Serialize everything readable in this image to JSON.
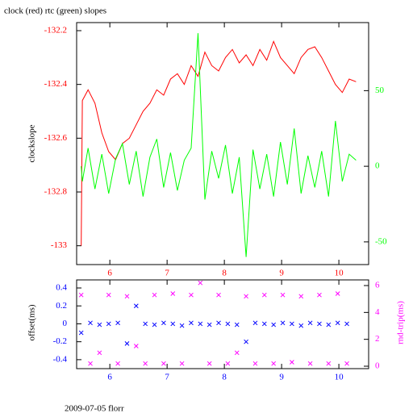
{
  "chart_data": [
    {
      "type": "line",
      "title": "clock (red) rtc (green) slopes",
      "y_label": "clockslope",
      "x": [
        5.5,
        5.52,
        5.62,
        5.74,
        5.86,
        5.98,
        6.1,
        6.22,
        6.34,
        6.46,
        6.58,
        6.7,
        6.82,
        6.94,
        7.06,
        7.18,
        7.3,
        7.42,
        7.54,
        7.66,
        7.78,
        7.9,
        8.02,
        8.14,
        8.26,
        8.38,
        8.5,
        8.62,
        8.74,
        8.86,
        8.98,
        9.1,
        9.22,
        9.34,
        9.46,
        9.58,
        9.7,
        9.82,
        9.94,
        10.06,
        10.18,
        10.3
      ],
      "series": [
        {
          "color": "#ff0000",
          "values": [
            -133.0,
            -132.46,
            -132.42,
            -132.47,
            -132.58,
            -132.65,
            -132.68,
            -132.62,
            -132.6,
            -132.55,
            -132.5,
            -132.47,
            -132.42,
            -132.44,
            -132.38,
            -132.36,
            -132.4,
            -132.33,
            -132.37,
            -132.28,
            -132.33,
            -132.35,
            -132.3,
            -132.27,
            -132.32,
            -132.29,
            -132.33,
            -132.27,
            -132.31,
            -132.24,
            -132.3,
            -132.33,
            -132.36,
            -132.3,
            -132.27,
            -132.26,
            -132.3,
            -132.35,
            -132.4,
            -132.43,
            -132.38,
            -132.39
          ]
        },
        {
          "color": "#00ff00",
          "axis": "y2",
          "values": [
            0,
            -10,
            12,
            -15,
            8,
            -18,
            5,
            15,
            -12,
            10,
            -20,
            6,
            18,
            -14,
            9,
            -16,
            4,
            12,
            88,
            -22,
            10,
            -8,
            14,
            -18,
            6,
            -60,
            11,
            -15,
            8,
            -20,
            16,
            -12,
            25,
            -18,
            7,
            -14,
            10,
            -20,
            30,
            -10,
            8,
            4
          ]
        }
      ],
      "xlim": [
        5.42,
        10.52
      ],
      "xticks": [
        6,
        7,
        8,
        9,
        10
      ],
      "ylim": [
        -133.07,
        -132.17
      ],
      "yticks": [
        -133,
        -132.8,
        -132.6,
        -132.4,
        -132.2
      ],
      "y2lim": [
        -65,
        95
      ],
      "y2ticks": [
        -50,
        0,
        50
      ]
    },
    {
      "type": "scatter",
      "y_label": "offset(ms)",
      "y2_label": "rnd-trip(ms)",
      "footer": "2009-07-05 florr",
      "x": [
        5.5,
        5.66,
        5.82,
        5.98,
        6.14,
        6.3,
        6.46,
        6.62,
        6.78,
        6.94,
        7.1,
        7.26,
        7.42,
        7.58,
        7.74,
        7.9,
        8.06,
        8.22,
        8.38,
        8.54,
        8.7,
        8.86,
        9.02,
        9.18,
        9.34,
        9.5,
        9.66,
        9.82,
        9.98,
        10.14
      ],
      "series": [
        {
          "color": "#0000ff",
          "values": [
            -0.1,
            0.01,
            -0.01,
            0,
            0.01,
            -0.22,
            0.2,
            0,
            -0.01,
            0.01,
            0,
            -0.02,
            0.01,
            0,
            -0.01,
            0.01,
            0,
            -0.01,
            -0.2,
            0.01,
            0,
            -0.01,
            0.01,
            0,
            -0.02,
            0.01,
            0,
            -0.01,
            0.01,
            0
          ]
        },
        {
          "color": "#ff00ff",
          "axis": "y2",
          "values": [
            5.3,
            0.2,
            1.0,
            5.3,
            0.2,
            5.2,
            1.5,
            0.2,
            5.3,
            0.2,
            5.4,
            0.2,
            5.3,
            6.2,
            0.2,
            5.3,
            0.2,
            1.0,
            5.2,
            0.2,
            5.3,
            0.2,
            5.3,
            0.3,
            5.2,
            0.2,
            5.3,
            0.2,
            5.4,
            0.2
          ]
        }
      ],
      "xlim": [
        5.42,
        10.52
      ],
      "xticks": [
        6,
        7,
        8,
        9,
        10
      ],
      "ylim": [
        -0.5,
        0.49
      ],
      "yticks": [
        -0.4,
        -0.2,
        0,
        0.2,
        0.4
      ],
      "y2lim": [
        -0.18,
        6.42
      ],
      "y2ticks": [
        0,
        2,
        4,
        6
      ]
    }
  ]
}
